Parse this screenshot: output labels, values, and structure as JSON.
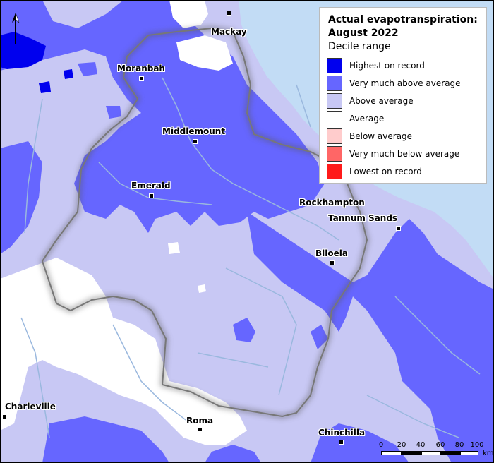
{
  "legend": {
    "title_line1": "Actual evapotranspiration:",
    "title_line2": "August 2022",
    "subtitle": "Decile range",
    "items": [
      {
        "label": "Highest on record",
        "color": "#0000ee"
      },
      {
        "label": "Very much above average",
        "color": "#6666ff"
      },
      {
        "label": "Above average",
        "color": "#c8c8f4"
      },
      {
        "label": "Average",
        "color": "#ffffff"
      },
      {
        "label": "Below average",
        "color": "#ffcccc"
      },
      {
        "label": "Very much below average",
        "color": "#ff6666"
      },
      {
        "label": "Lowest on record",
        "color": "#ff1a1a"
      }
    ]
  },
  "towns": {
    "mackay": "Mackay",
    "moranbah": "Moranbah",
    "middlemount": "Middlemount",
    "emerald": "Emerald",
    "rockhampton": "Rockhampton",
    "tannum_sands": "Tannum Sands",
    "biloela": "Biloela",
    "charleville": "Charleville",
    "roma": "Roma",
    "chinchilla": "Chinchilla"
  },
  "scale": {
    "ticks": [
      "0",
      "20",
      "40",
      "60",
      "80",
      "100"
    ],
    "unit": "km"
  },
  "colors": {
    "ocean": "#c2dcf5",
    "river": "#9ab8de",
    "basin_border": "#777777"
  }
}
